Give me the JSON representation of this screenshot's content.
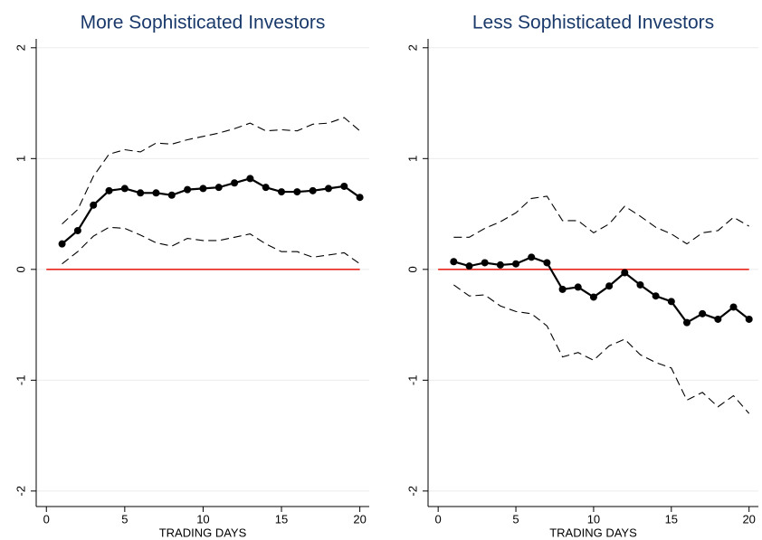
{
  "chart_data": [
    {
      "type": "line",
      "title": "More Sophisticated Investors",
      "x_label": "TRADING DAYS",
      "x": [
        1,
        2,
        3,
        4,
        5,
        6,
        7,
        8,
        9,
        10,
        11,
        12,
        13,
        14,
        15,
        16,
        17,
        18,
        19,
        20
      ],
      "series": [
        {
          "color": "#000000",
          "dashed": true,
          "markers": false,
          "values": [
            0.41,
            0.54,
            0.84,
            1.04,
            1.08,
            1.06,
            1.14,
            1.13,
            1.17,
            1.2,
            1.23,
            1.27,
            1.32,
            1.25,
            1.26,
            1.25,
            1.31,
            1.32,
            1.37,
            1.25
          ]
        },
        {
          "color": "#000000",
          "dashed": false,
          "markers": true,
          "values": [
            0.23,
            0.35,
            0.58,
            0.71,
            0.73,
            0.69,
            0.69,
            0.67,
            0.72,
            0.73,
            0.74,
            0.78,
            0.82,
            0.74,
            0.7,
            0.7,
            0.71,
            0.73,
            0.75,
            0.65
          ]
        },
        {
          "color": "#000000",
          "dashed": true,
          "markers": false,
          "values": [
            0.05,
            0.16,
            0.3,
            0.38,
            0.37,
            0.31,
            0.24,
            0.21,
            0.28,
            0.26,
            0.26,
            0.29,
            0.32,
            0.23,
            0.16,
            0.16,
            0.11,
            0.13,
            0.15,
            0.05
          ]
        }
      ],
      "hline": {
        "y": 0,
        "x": [
          0,
          20
        ],
        "color": "#e8261c"
      },
      "xlim": [
        -0.65,
        20.6
      ],
      "xticks": [
        0,
        5,
        10,
        15,
        20
      ],
      "ylim": [
        -2.14,
        2.08
      ],
      "yticks": [
        -2,
        -1,
        0,
        1,
        2
      ],
      "grid": true
    },
    {
      "type": "line",
      "title": "Less Sophisticated Investors",
      "x_label": "TRADING DAYS",
      "x": [
        1,
        2,
        3,
        4,
        5,
        6,
        7,
        8,
        9,
        10,
        11,
        12,
        13,
        14,
        15,
        16,
        17,
        18,
        19,
        20
      ],
      "series": [
        {
          "color": "#000000",
          "dashed": true,
          "markers": false,
          "values": [
            0.29,
            0.29,
            0.37,
            0.43,
            0.51,
            0.64,
            0.66,
            0.44,
            0.44,
            0.33,
            0.41,
            0.57,
            0.48,
            0.38,
            0.32,
            0.23,
            0.33,
            0.35,
            0.47,
            0.39
          ]
        },
        {
          "color": "#000000",
          "dashed": false,
          "markers": true,
          "values": [
            0.07,
            0.03,
            0.06,
            0.04,
            0.05,
            0.11,
            0.06,
            -0.18,
            -0.16,
            -0.25,
            -0.15,
            -0.03,
            -0.14,
            -0.24,
            -0.29,
            -0.48,
            -0.4,
            -0.45,
            -0.34,
            -0.45
          ]
        },
        {
          "color": "#000000",
          "dashed": true,
          "markers": false,
          "values": [
            -0.14,
            -0.24,
            -0.23,
            -0.33,
            -0.38,
            -0.4,
            -0.51,
            -0.79,
            -0.75,
            -0.82,
            -0.69,
            -0.63,
            -0.77,
            -0.84,
            -0.89,
            -1.18,
            -1.11,
            -1.24,
            -1.14,
            -1.3
          ]
        }
      ],
      "hline": {
        "y": 0,
        "x": [
          0,
          20
        ],
        "color": "#e8261c"
      },
      "xlim": [
        -0.65,
        20.6
      ],
      "xticks": [
        0,
        5,
        10,
        15,
        20
      ],
      "ylim": [
        -2.14,
        2.08
      ],
      "yticks": [
        -2,
        -1,
        0,
        1,
        2
      ],
      "grid": true
    }
  ]
}
